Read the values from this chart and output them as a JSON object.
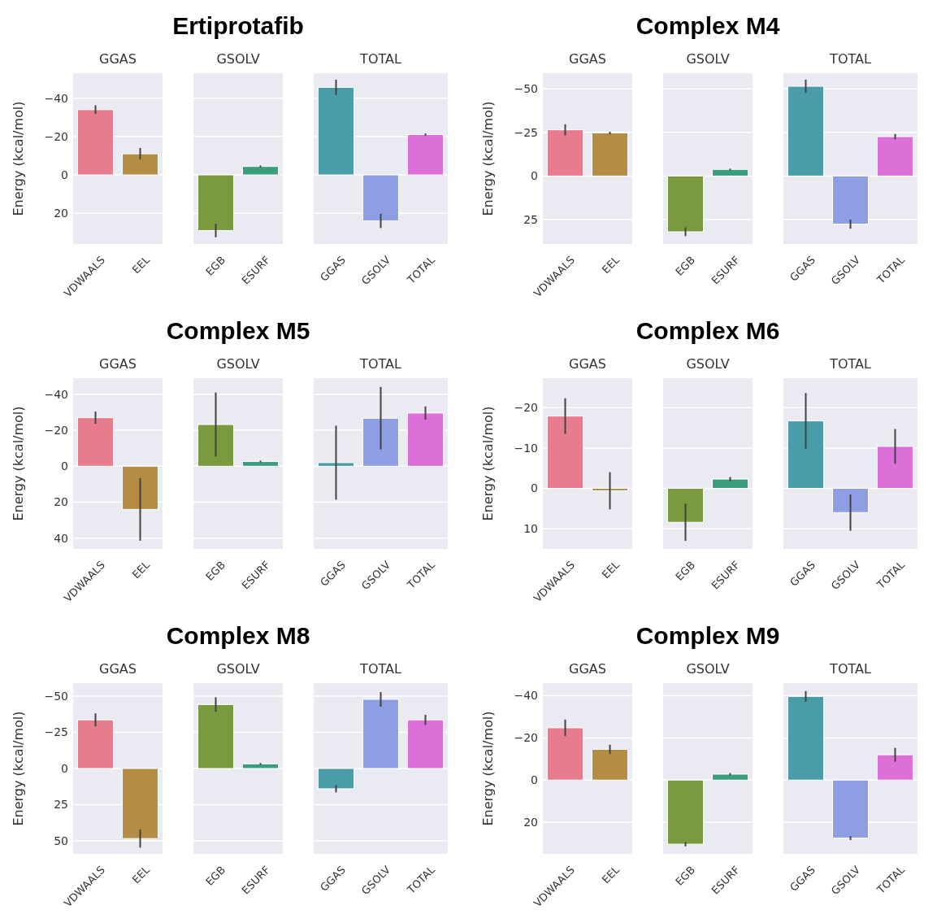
{
  "chart_data": [
    {
      "type": "bar",
      "subtitle": "GGAS",
      "ylabel": "Energy (kcal/mol)",
      "categories": [
        "VDWAALS",
        "EEL"
      ],
      "values": [
        -34,
        -11
      ],
      "errors": [
        2.3,
        3
      ],
      "colors": [
        "#e77c8e",
        "#b48c43"
      ],
      "ylim": [
        36,
        -53
      ],
      "yticks": [
        -40,
        -20,
        0,
        20
      ],
      "grid": "y"
    },
    {
      "type": "bar",
      "title": "Ertiprotafib",
      "subtitle": "GSOLV",
      "categories": [
        "EGB",
        "ESURF"
      ],
      "values": [
        29,
        -4.4
      ],
      "errors": [
        3.5,
        0.5
      ],
      "colors": [
        "#7a9a3f",
        "#3a9e7e"
      ],
      "ylim": [
        36,
        -53
      ],
      "yticks": [
        -40,
        -20,
        0,
        20
      ],
      "grid": "y",
      "tick_labels": "x"
    },
    {
      "type": "bar",
      "subtitle": "TOTAL",
      "categories": [
        "GGAS",
        "GSOLV",
        "TOTAL"
      ],
      "values": [
        -45.6,
        24,
        -21
      ],
      "errors": [
        4,
        3.7,
        0.6
      ],
      "colors": [
        "#4a9ca8",
        "#8e9ee3",
        "#dd70d8"
      ],
      "ylim": [
        36,
        -53
      ],
      "yticks": [
        -40,
        -20,
        0,
        20
      ],
      "grid": "y",
      "tick_labels": "x"
    },
    {
      "type": "bar",
      "subtitle": "GGAS",
      "ylabel": "Energy (kcal/mol)",
      "categories": [
        "VDWAALS",
        "EEL"
      ],
      "values": [
        -26.5,
        -24.7
      ],
      "errors": [
        3.2,
        0.7
      ],
      "colors": [
        "#e77c8e",
        "#b48c43"
      ],
      "ylim": [
        39,
        -59
      ],
      "yticks": [
        -50,
        -25,
        0,
        25
      ],
      "grid": "y"
    },
    {
      "type": "bar",
      "title": "Complex M4",
      "subtitle": "GSOLV",
      "categories": [
        "EGB",
        "ESURF"
      ],
      "values": [
        32,
        -3.8
      ],
      "errors": [
        2.5,
        0.4
      ],
      "colors": [
        "#7a9a3f",
        "#3a9e7e"
      ],
      "ylim": [
        39,
        -59
      ],
      "yticks": [
        -50,
        -25,
        0,
        25
      ],
      "grid": "y",
      "tick_labels": "x"
    },
    {
      "type": "bar",
      "subtitle": "TOTAL",
      "categories": [
        "GGAS",
        "GSOLV",
        "TOTAL"
      ],
      "values": [
        -51.5,
        27.6,
        -22.6
      ],
      "errors": [
        3.8,
        2.6,
        1.5
      ],
      "colors": [
        "#4a9ca8",
        "#8e9ee3",
        "#dd70d8"
      ],
      "ylim": [
        39,
        -59
      ],
      "yticks": [
        -50,
        -25,
        0,
        25
      ],
      "grid": "y",
      "tick_labels": "x"
    },
    {
      "type": "bar",
      "subtitle": "GGAS",
      "ylabel": "Energy (kcal/mol)",
      "categories": [
        "VDWAALS",
        "EEL"
      ],
      "values": [
        -27,
        24
      ],
      "errors": [
        3.4,
        17.4
      ],
      "colors": [
        "#e77c8e",
        "#b48c43"
      ],
      "ylim": [
        46,
        -49
      ],
      "yticks": [
        -40,
        -20,
        0,
        20,
        40
      ],
      "grid": "y"
    },
    {
      "type": "bar",
      "title": "Complex M5",
      "subtitle": "GSOLV",
      "categories": [
        "EGB",
        "ESURF"
      ],
      "values": [
        -23.2,
        -2.6
      ],
      "errors": [
        17.8,
        0.5
      ],
      "colors": [
        "#7a9a3f",
        "#3a9e7e"
      ],
      "ylim": [
        46,
        -49
      ],
      "yticks": [
        -40,
        -20,
        0,
        20,
        40
      ],
      "grid": "y",
      "tick_labels": "x"
    },
    {
      "type": "bar",
      "subtitle": "TOTAL",
      "categories": [
        "GGAS",
        "GSOLV",
        "TOTAL"
      ],
      "values": [
        -2,
        -26.7,
        -29.6
      ],
      "errors": [
        20.6,
        17.4,
        3.7
      ],
      "colors": [
        "#4a9ca8",
        "#8e9ee3",
        "#dd70d8"
      ],
      "ylim": [
        46,
        -49
      ],
      "yticks": [
        -40,
        -20,
        0,
        20,
        40
      ],
      "grid": "y",
      "tick_labels": "x"
    },
    {
      "type": "bar",
      "subtitle": "GGAS",
      "ylabel": "Energy (kcal/mol)",
      "categories": [
        "VDWAALS",
        "EEL"
      ],
      "values": [
        -17.9,
        0.6
      ],
      "errors": [
        4.4,
        4.6
      ],
      "colors": [
        "#e77c8e",
        "#b48c43"
      ],
      "ylim": [
        15,
        -27.3
      ],
      "yticks": [
        -20,
        -10,
        0,
        10
      ],
      "grid": "y"
    },
    {
      "type": "bar",
      "title": "Complex M6",
      "subtitle": "GSOLV",
      "categories": [
        "EGB",
        "ESURF"
      ],
      "values": [
        8.4,
        -2.3
      ],
      "errors": [
        4.6,
        0.5
      ],
      "colors": [
        "#7a9a3f",
        "#3a9e7e"
      ],
      "ylim": [
        15,
        -27.3
      ],
      "yticks": [
        -20,
        -10,
        0,
        10
      ],
      "grid": "y",
      "tick_labels": "x"
    },
    {
      "type": "bar",
      "subtitle": "TOTAL",
      "categories": [
        "GGAS",
        "GSOLV",
        "TOTAL"
      ],
      "values": [
        -16.7,
        6,
        -10.4
      ],
      "errors": [
        6.9,
        4.5,
        4.3
      ],
      "colors": [
        "#4a9ca8",
        "#8e9ee3",
        "#dd70d8"
      ],
      "ylim": [
        15,
        -27.3
      ],
      "yticks": [
        -20,
        -10,
        0,
        10
      ],
      "grid": "y",
      "tick_labels": "x"
    },
    {
      "type": "bar",
      "subtitle": "GGAS",
      "ylabel": "Energy (kcal/mol)",
      "categories": [
        "VDWAALS",
        "EEL"
      ],
      "values": [
        -33.6,
        48.4
      ],
      "errors": [
        4.5,
        6.3
      ],
      "colors": [
        "#e77c8e",
        "#b48c43"
      ],
      "ylim": [
        59,
        -59
      ],
      "yticks": [
        -50,
        -25,
        0,
        25,
        50
      ],
      "grid": "y"
    },
    {
      "type": "bar",
      "title": "Complex M8",
      "subtitle": "GSOLV",
      "categories": [
        "EGB",
        "ESURF"
      ],
      "values": [
        -44.2,
        -3.2
      ],
      "errors": [
        5,
        0.6
      ],
      "colors": [
        "#7a9a3f",
        "#3a9e7e"
      ],
      "ylim": [
        59,
        -59
      ],
      "yticks": [
        -50,
        -25,
        0,
        25,
        50
      ],
      "grid": "y",
      "tick_labels": "x"
    },
    {
      "type": "bar",
      "subtitle": "TOTAL",
      "categories": [
        "GGAS",
        "GSOLV",
        "TOTAL"
      ],
      "values": [
        14,
        -47.8,
        -33.6
      ],
      "errors": [
        2.5,
        5,
        3.5
      ],
      "colors": [
        "#4a9ca8",
        "#8e9ee3",
        "#dd70d8"
      ],
      "ylim": [
        59,
        -59
      ],
      "yticks": [
        -50,
        -25,
        0,
        25,
        50
      ],
      "grid": "y",
      "tick_labels": "x"
    },
    {
      "type": "bar",
      "subtitle": "GGAS",
      "ylabel": "Energy (kcal/mol)",
      "categories": [
        "VDWAALS",
        "EEL"
      ],
      "values": [
        -24.8,
        -14.6
      ],
      "errors": [
        3.9,
        2.2
      ],
      "colors": [
        "#e77c8e",
        "#b48c43"
      ],
      "ylim": [
        35,
        -46
      ],
      "yticks": [
        -40,
        -20,
        0,
        20
      ],
      "grid": "y"
    },
    {
      "type": "bar",
      "title": "Complex M9",
      "subtitle": "GSOLV",
      "categories": [
        "EGB",
        "ESURF"
      ],
      "values": [
        30.4,
        -2.8
      ],
      "errors": [
        1,
        0.5
      ],
      "colors": [
        "#7a9a3f",
        "#3a9e7e"
      ],
      "ylim": [
        35,
        -46
      ],
      "yticks": [
        -40,
        -20,
        0,
        20
      ],
      "grid": "y",
      "tick_labels": "x"
    },
    {
      "type": "bar",
      "subtitle": "TOTAL",
      "categories": [
        "GGAS",
        "GSOLV",
        "TOTAL"
      ],
      "values": [
        -39.7,
        27.5,
        -12
      ],
      "errors": [
        2.5,
        0.9,
        3.3
      ],
      "colors": [
        "#4a9ca8",
        "#8e9ee3",
        "#dd70d8"
      ],
      "ylim": [
        35,
        -46
      ],
      "yticks": [
        -40,
        -20,
        0,
        20
      ],
      "grid": "y",
      "tick_labels": "x"
    }
  ]
}
